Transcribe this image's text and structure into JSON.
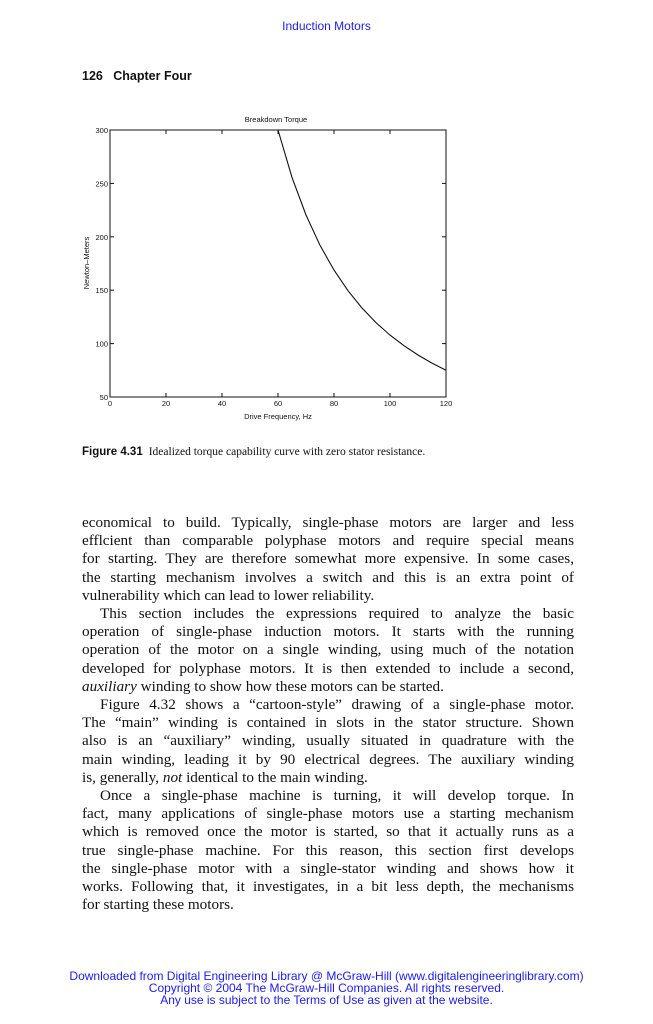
{
  "header": {
    "title": "Induction Motors"
  },
  "running_head": "126   Chapter Four",
  "chart_data": {
    "type": "line",
    "title": "Breakdown Torque",
    "xlabel": "Drive Frequency, Hz",
    "ylabel": "Newton–Meters",
    "xlim": [
      0,
      120
    ],
    "ylim": [
      50,
      300
    ],
    "xticks": [
      0,
      20,
      40,
      60,
      80,
      100,
      120
    ],
    "yticks": [
      50,
      100,
      150,
      200,
      250,
      300
    ],
    "grid": false,
    "series": [
      {
        "x": [
          0,
          60,
          65,
          70,
          75,
          80,
          85,
          90,
          95,
          100,
          105,
          110,
          115,
          120
        ],
        "y": [
          300,
          300,
          255.6,
          220.4,
          192,
          168.8,
          149.5,
          133.3,
          119.7,
          108,
          98,
          89.3,
          81.7,
          75
        ]
      }
    ],
    "color": "#111111"
  },
  "caption": {
    "label": "Figure 4.31",
    "text": "Idealized torque capability curve with zero stator resistance."
  },
  "paragraphs": [
    {
      "indent": false,
      "lines": [
        "economical to build. Typically, single-phase motors are larger and less",
        "efflcient than comparable polyphase motors and require special means",
        "for starting. They are therefore somewhat more expensive. In some cases,",
        "the starting mechanism involves a switch and this is an extra point of",
        "vulnerability which can lead to lower reliability."
      ]
    },
    {
      "indent": true,
      "lines": [
        "This section includes the expressions required to analyze the basic",
        "operation of single-phase induction motors. It starts with the running",
        "operation of the motor on a single winding, using much of the notation",
        "developed for polyphase motors. It is then extended to include a second,",
        [
          [
            "auxiliary",
            true
          ],
          [
            " winding to show how these motors can be started.",
            false
          ]
        ]
      ]
    },
    {
      "indent": true,
      "lines": [
        "Figure 4.32 shows a “cartoon-style” drawing of a single-phase motor.",
        "The “main” winding is contained in slots in the stator structure. Shown",
        "also is an “auxiliary” winding, usually situated in quadrature with the",
        "main winding, leading it by 90 electrical degrees. The auxiliary winding",
        [
          [
            "is, generally, ",
            false
          ],
          [
            "not",
            true
          ],
          [
            " identical to the main winding.",
            false
          ]
        ]
      ]
    },
    {
      "indent": true,
      "lines": [
        "Once a single-phase machine is turning, it will develop torque. In",
        "fact, many applications of single-phase motors use a starting mechanism",
        "which is removed once the motor is started, so that it actually runs as a",
        "true single-phase machine. For this reason, this section first develops",
        "the single-phase motor with a single-stator winding and shows how it",
        "works. Following that, it investigates, in a bit less depth, the mechanisms",
        "for starting these motors."
      ]
    }
  ],
  "footer": {
    "line1": "Downloaded from Digital Engineering Library @ McGraw-Hill (www.digitalengineeringlibrary.com)",
    "line2": "Copyright © 2004 The McGraw-Hill Companies. All rights reserved.",
    "line3": "Any use is subject to the Terms of Use as given at the website."
  }
}
